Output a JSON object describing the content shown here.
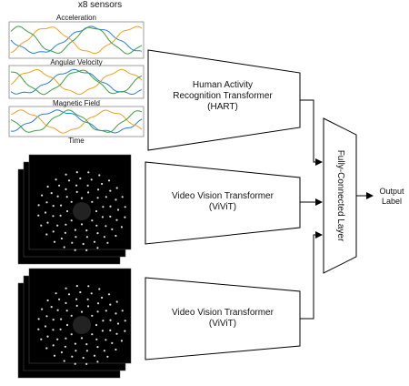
{
  "sensors": {
    "count_label": "x8 sensors",
    "plots": [
      "Acceleration",
      "Angular Velocity",
      "Magnetic Field"
    ],
    "x_axis": "Time"
  },
  "encoders": [
    {
      "label": "Human Activity Recognition Transformer (HART)"
    },
    {
      "label": "Video Vision Transformer (ViViT)"
    },
    {
      "label": "Video Vision Transformer (ViViT)"
    }
  ],
  "fusion": {
    "label": "Fully-Connected Layer"
  },
  "output": {
    "label": "Output Label"
  }
}
